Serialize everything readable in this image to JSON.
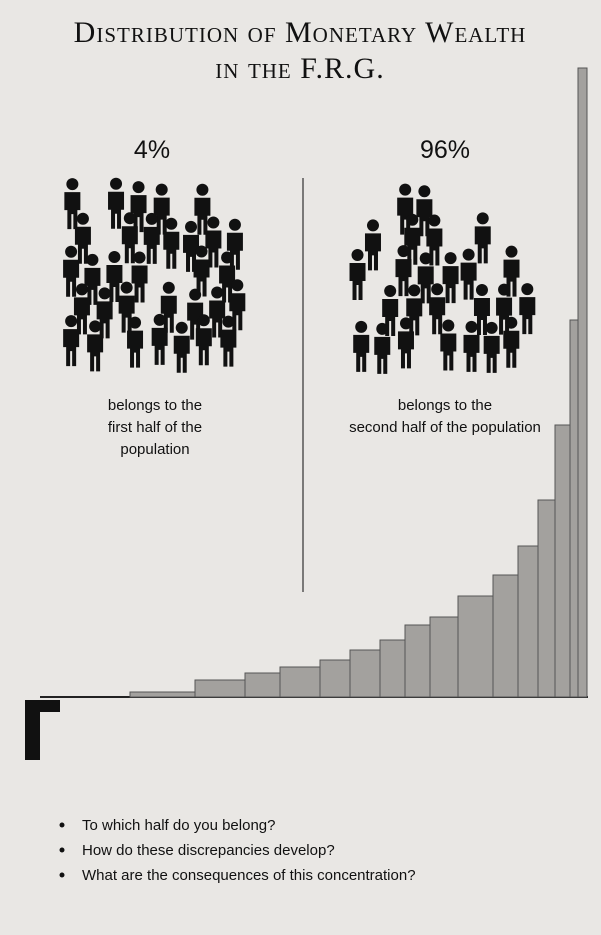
{
  "title": [
    "Distribution of Monetary Wealth",
    "in the F.R.G."
  ],
  "groups": [
    {
      "share": "4%",
      "caption": [
        "belongs to the",
        "first half of the",
        "population"
      ]
    },
    {
      "share": "96%",
      "caption": [
        "belongs to the",
        "second half of the population"
      ]
    }
  ],
  "questions": [
    "To which half do you belong?",
    "How do these discrepancies develop?",
    "What are the consequences of this concentration?"
  ]
}
